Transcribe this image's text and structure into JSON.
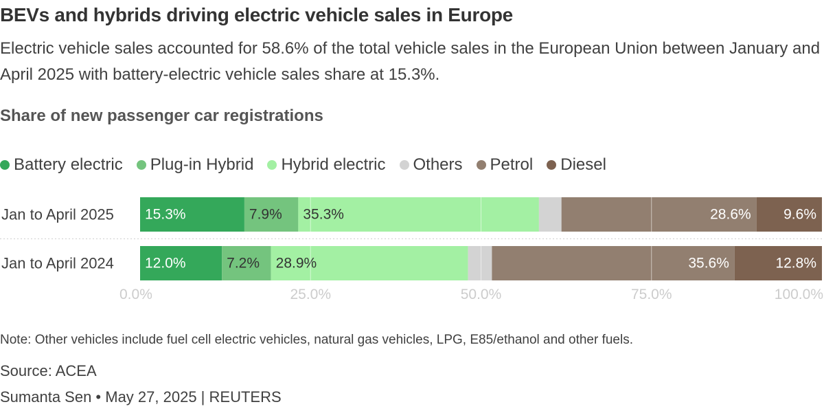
{
  "title": "BEVs and hybrids driving electric vehicle sales in Europe",
  "subtitle": "Electric vehicle sales accounted for 58.6% of the total vehicle sales in the European Union between January and April 2025 with battery-electric vehicle sales share at 15.3%.",
  "chart_heading": "Share of new passenger car registrations",
  "colors": {
    "battery_electric": "#34a85a",
    "plug_in_hybrid": "#74c47e",
    "hybrid_electric": "#a3f0a3",
    "others": "#d3d3d3",
    "petrol": "#927f70",
    "diesel": "#7d6250",
    "label_light": "#ffffff",
    "label_dark": "#333333",
    "tick": "#cccccc",
    "row_label": "#404040"
  },
  "chart_data": {
    "type": "bar",
    "orientation": "horizontal",
    "stacked": true,
    "categories": [
      "Jan to April 2025",
      "Jan to April 2024"
    ],
    "series": [
      {
        "name": "Battery electric",
        "color_key": "battery_electric",
        "values": [
          15.3,
          12.0
        ],
        "labels": [
          "15.3%",
          "12.0%"
        ],
        "label_color": "label_light"
      },
      {
        "name": "Plug-in Hybrid",
        "color_key": "plug_in_hybrid",
        "values": [
          7.9,
          7.2
        ],
        "labels": [
          "7.9%",
          "7.2%"
        ],
        "label_color": "label_dark"
      },
      {
        "name": "Hybrid electric",
        "color_key": "hybrid_electric",
        "values": [
          35.3,
          28.9
        ],
        "labels": [
          "35.3%",
          "28.9%"
        ],
        "label_color": "label_dark"
      },
      {
        "name": "Others",
        "color_key": "others",
        "values": [
          3.3,
          3.5
        ],
        "labels": [
          "",
          ""
        ],
        "label_color": "label_dark"
      },
      {
        "name": "Petrol",
        "color_key": "petrol",
        "values": [
          28.6,
          35.6
        ],
        "labels": [
          "28.6%",
          "35.6%"
        ],
        "label_color": "label_light"
      },
      {
        "name": "Diesel",
        "color_key": "diesel",
        "values": [
          9.6,
          12.8
        ],
        "labels": [
          "9.6%",
          "12.8%"
        ],
        "label_color": "label_light"
      }
    ],
    "xlim": [
      0,
      100
    ],
    "x_ticks": [
      0,
      25,
      50,
      75,
      100
    ],
    "x_tick_labels": [
      "0.0%",
      "25.0%",
      "50.0%",
      "75.0%",
      "100.0%"
    ],
    "gridlines": true,
    "legend_position": "top-left"
  },
  "note": "Note: Other vehicles include fuel cell electric vehicles, natural gas vehicles, LPG, E85/ethanol and other fuels.",
  "source": "Source: ACEA",
  "credit": {
    "author": "Sumanta Sen",
    "date": "May 27, 2025",
    "agency": "REUTERS"
  }
}
